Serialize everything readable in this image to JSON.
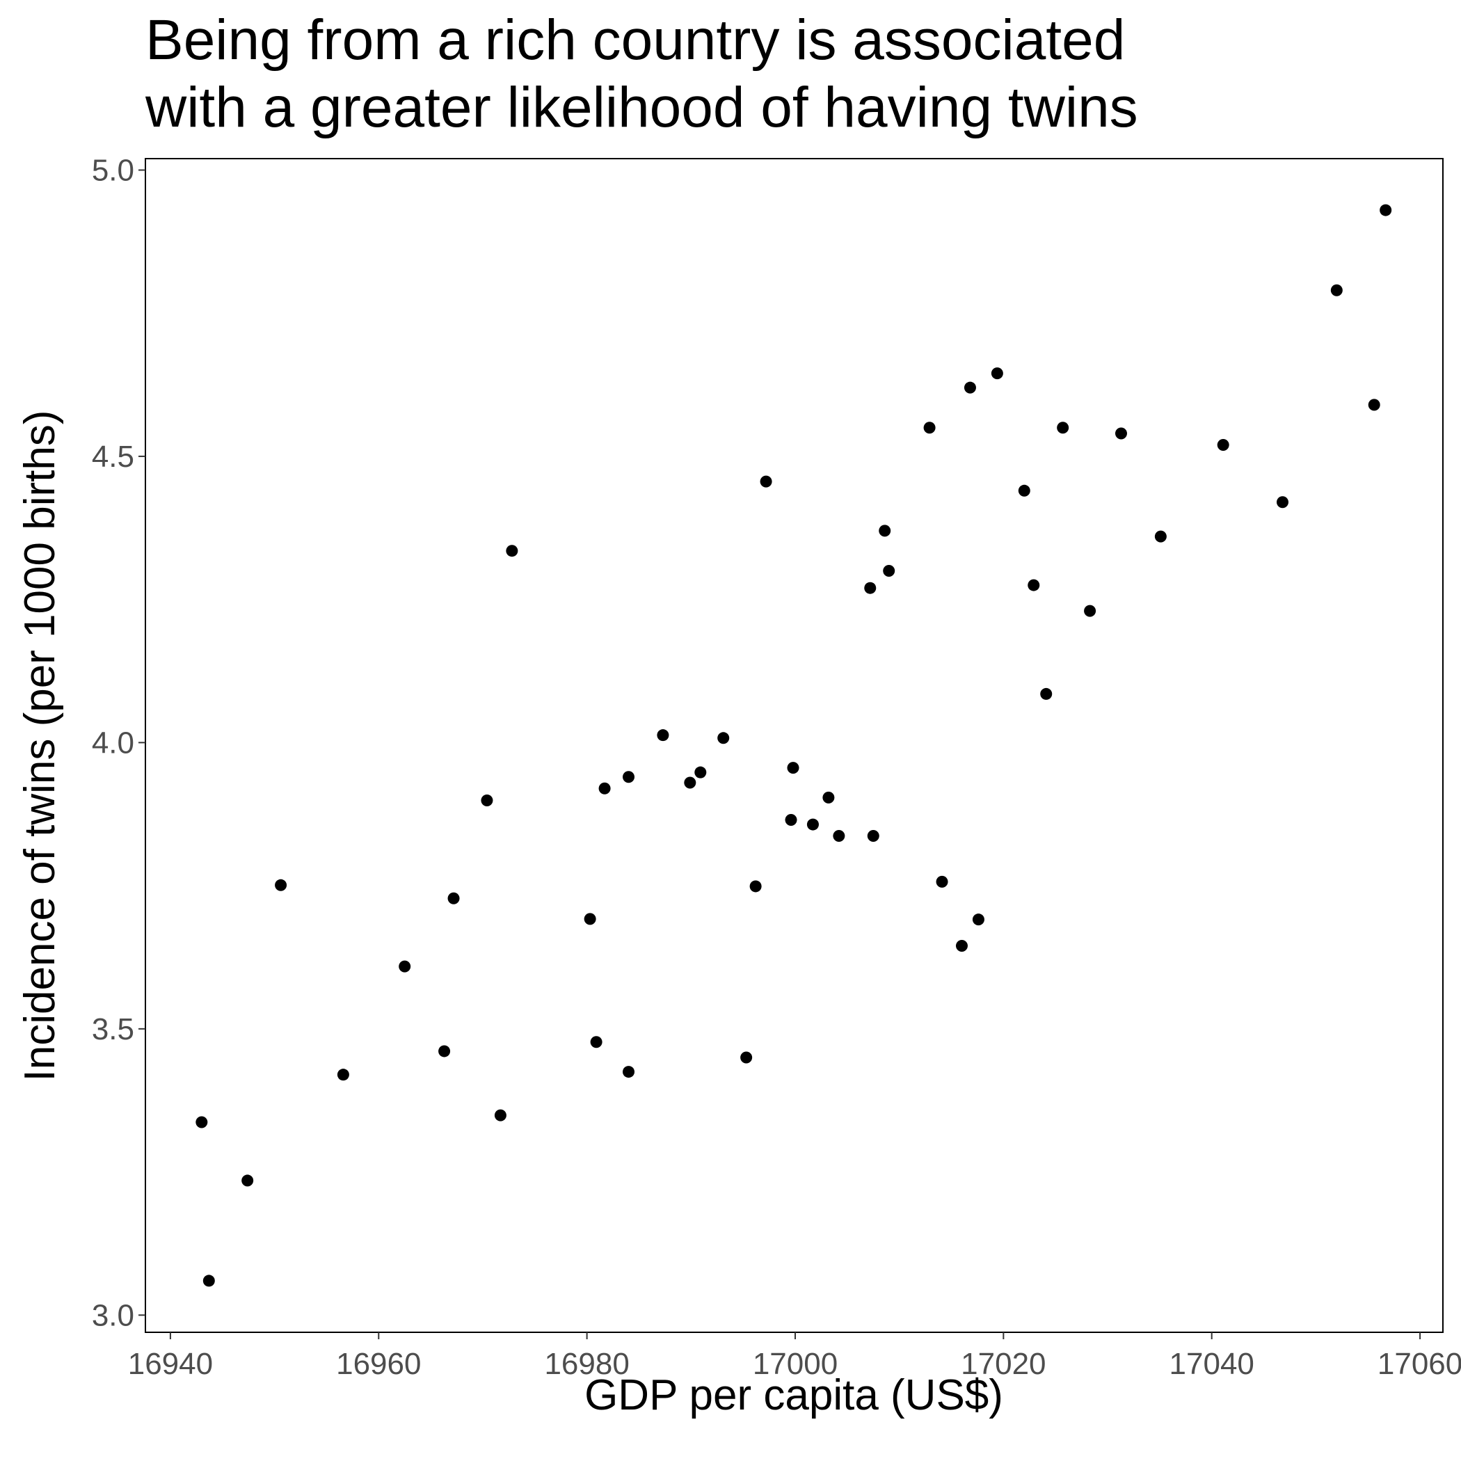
{
  "chart_data": {
    "type": "scatter",
    "title": [
      "Being from a rich country is associated",
      "with a greater likelihood of having twins"
    ],
    "x_label": "GDP per capita (US$)",
    "y_label": "Incidence of twins (per 1000 births)",
    "color": "#000000",
    "xlim": [
      16937.6,
      17062.2
    ],
    "ylim": [
      2.97,
      5.02
    ],
    "xticks": [
      16940,
      16960,
      16980,
      17000,
      17020,
      17040,
      17060
    ],
    "yticks": [
      {
        "value": 3,
        "label": "3.0"
      },
      3.5,
      {
        "value": 4,
        "label": "4.0"
      },
      4.5,
      {
        "value": 5,
        "label": "5.0"
      }
    ],
    "x": [
      17056.7,
      17052.0,
      17055.6,
      17019.4,
      17016.8,
      17012.9,
      17025.7,
      17031.3,
      17041.1,
      17022.0,
      17046.8,
      16997.2,
      17008.6,
      17035.1,
      16972.8,
      17009.0,
      17007.2,
      17022.9,
      17028.3,
      17024.1,
      16987.3,
      16993.1,
      16999.8,
      16990.9,
      16984.0,
      16989.9,
      16981.7,
      17003.2,
      16970.4,
      16999.6,
      17001.7,
      17004.2,
      17007.5,
      17014.1,
      16996.2,
      16950.6,
      16967.2,
      16980.3,
      17017.6,
      17016.0,
      16962.5,
      16980.9,
      16966.3,
      16995.3,
      16984.0,
      16956.6,
      16971.7,
      16943.0,
      16947.4,
      16943.7
    ],
    "values": [
      4.93,
      4.79,
      4.59,
      4.645,
      4.62,
      4.55,
      4.55,
      4.54,
      4.52,
      4.44,
      4.42,
      4.456,
      4.37,
      4.36,
      4.335,
      4.3,
      4.27,
      4.275,
      4.23,
      4.085,
      4.013,
      4.008,
      3.956,
      3.948,
      3.94,
      3.93,
      3.92,
      3.904,
      3.899,
      3.865,
      3.857,
      3.837,
      3.837,
      3.757,
      3.749,
      3.751,
      3.728,
      3.692,
      3.691,
      3.645,
      3.609,
      3.477,
      3.461,
      3.45,
      3.425,
      3.42,
      3.349,
      3.337,
      3.235,
      3.06
    ]
  }
}
